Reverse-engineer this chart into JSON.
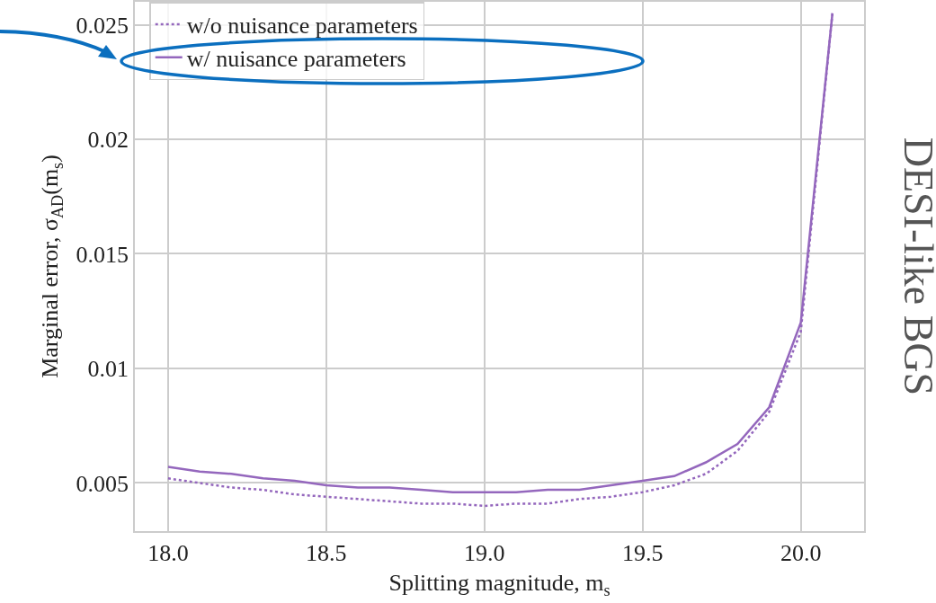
{
  "chart_data": {
    "type": "line",
    "xlabel": "Splitting magnitude, m$_{s}$",
    "ylabel": "Marginal error, σ$_{AD}$(m$_{s}$)",
    "annotations": [
      "DESI-like BGS"
    ],
    "x": [
      18.0,
      18.1,
      18.2,
      18.3,
      18.4,
      18.5,
      18.6,
      18.7,
      18.8,
      18.9,
      19.0,
      19.1,
      19.2,
      19.3,
      19.4,
      19.5,
      19.6,
      19.7,
      19.8,
      19.9,
      20.0,
      20.1
    ],
    "series": [
      {
        "name": "w/o nuisance parameters",
        "color": "#9467bd",
        "line_style": "dashed",
        "values": [
          0.0052,
          0.005,
          0.0048,
          0.0047,
          0.0045,
          0.0044,
          0.0043,
          0.0042,
          0.0041,
          0.0041,
          0.004,
          0.0041,
          0.0041,
          0.0043,
          0.0044,
          0.0046,
          0.0049,
          0.0054,
          0.0064,
          0.0081,
          0.0116,
          0.0255
        ]
      },
      {
        "name": "w/ nuisance parameters",
        "color": "#9467bd",
        "line_style": "solid",
        "values": [
          0.0057,
          0.0055,
          0.0054,
          0.0052,
          0.0051,
          0.0049,
          0.0048,
          0.0048,
          0.0047,
          0.0046,
          0.0046,
          0.0046,
          0.0047,
          0.0047,
          0.0049,
          0.0051,
          0.0053,
          0.0059,
          0.0067,
          0.0083,
          0.012,
          0.0255
        ]
      }
    ],
    "xlim": [
      17.895,
      20.2
    ],
    "ylim": [
      0.0029,
      0.026
    ],
    "xticks": [
      {
        "value": 18,
        "label": "18.0"
      },
      {
        "value": 18.5,
        "label": "18.5"
      },
      {
        "value": 19,
        "label": "19.0"
      },
      {
        "value": 19.5,
        "label": "19.5"
      },
      {
        "value": 20,
        "label": "20.0"
      }
    ],
    "yticks": [
      0.005,
      0.01,
      0.015,
      0.02,
      0.025
    ],
    "grid": true,
    "legend": "top left",
    "marker": "none"
  }
}
